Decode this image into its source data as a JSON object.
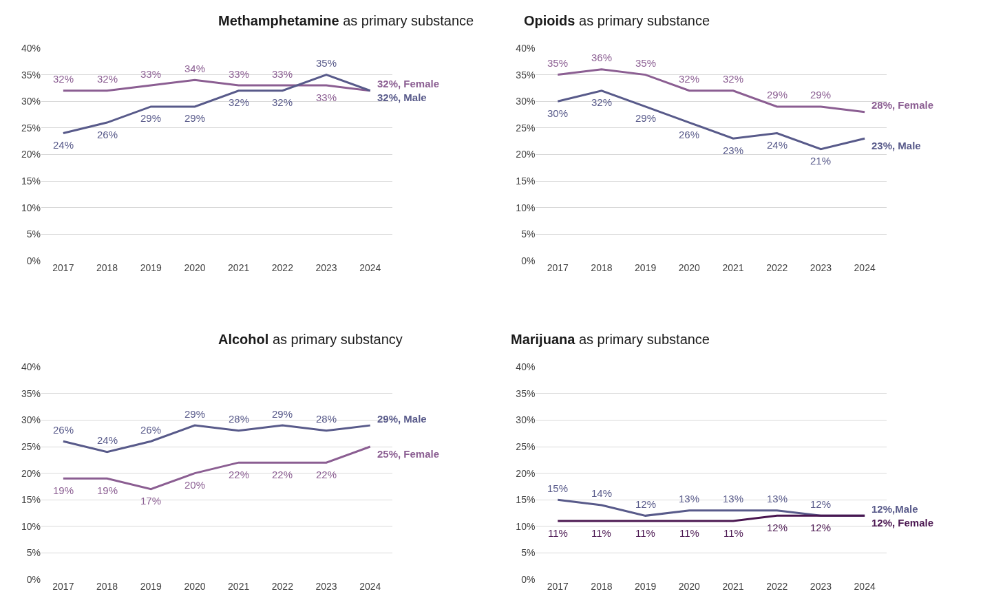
{
  "chart_data": [
    {
      "type": "line",
      "title": "Methamphetamine as primary substance",
      "categories": [
        "2017",
        "2018",
        "2019",
        "2020",
        "2021",
        "2022",
        "2023",
        "2024"
      ],
      "series": [
        {
          "color": "#8b5e92",
          "values": [
            32,
            32,
            33,
            34,
            33,
            33,
            33,
            32
          ],
          "value_labels": [
            "32%",
            "32%",
            "33%",
            "34%",
            "33%",
            "33%",
            "33%",
            "32%, Female"
          ]
        },
        {
          "color": "#585a8a",
          "values": [
            24,
            26,
            29,
            29,
            32,
            32,
            35,
            32
          ],
          "value_labels": [
            "24%",
            "26%",
            "29%",
            "29%",
            "32%",
            "32%",
            "35%",
            "32%, Male"
          ]
        }
      ],
      "ylim": [
        0,
        40
      ],
      "yticks": [
        {
          "value": 0,
          "label": "0%"
        },
        {
          "value": 5,
          "label": "5%"
        },
        {
          "value": 10,
          "label": "10%"
        },
        {
          "value": 15,
          "label": "15%"
        },
        {
          "value": 20,
          "label": "20%"
        },
        {
          "value": 25,
          "label": "25%"
        },
        {
          "value": 30,
          "label": "30%"
        },
        {
          "value": 35,
          "label": "35%"
        },
        {
          "value": 40,
          "label": "40%"
        }
      ],
      "grid": "y",
      "marker": "none"
    },
    {
      "type": "line",
      "title": "Opioids as primary substance",
      "categories": [
        "2017",
        "2018",
        "2019",
        "2020",
        "2021",
        "2022",
        "2023",
        "2024"
      ],
      "series": [
        {
          "color": "#8b5e92",
          "values": [
            35,
            36,
            35,
            32,
            32,
            29,
            29,
            28
          ],
          "value_labels": [
            "35%",
            "36%",
            "35%",
            "32%",
            "32%",
            "29%",
            "29%",
            "28%, Female"
          ]
        },
        {
          "color": "#585a8a",
          "values": [
            30,
            32,
            29,
            26,
            23,
            24,
            21,
            23
          ],
          "value_labels": [
            "30%",
            "32%",
            "29%",
            "26%",
            "23%",
            "24%",
            "21%",
            "23%, Male"
          ]
        }
      ],
      "ylim": [
        0,
        40
      ],
      "yticks": [
        {
          "value": 0,
          "label": "0%"
        },
        {
          "value": 5,
          "label": "5%"
        },
        {
          "value": 10,
          "label": "10%"
        },
        {
          "value": 15,
          "label": "15%"
        },
        {
          "value": 20,
          "label": "20%"
        },
        {
          "value": 25,
          "label": "25%"
        },
        {
          "value": 30,
          "label": "30%"
        },
        {
          "value": 35,
          "label": "35%"
        },
        {
          "value": 40,
          "label": "40%"
        }
      ],
      "grid": "y",
      "marker": "none"
    },
    {
      "type": "line",
      "title": "Alcohol as primary substancy",
      "categories": [
        "2017",
        "2018",
        "2019",
        "2020",
        "2021",
        "2022",
        "2023",
        "2024"
      ],
      "series": [
        {
          "color": "#585a8a",
          "values": [
            26,
            24,
            26,
            29,
            28,
            29,
            28,
            29
          ],
          "value_labels": [
            "26%",
            "24%",
            "26%",
            "29%",
            "28%",
            "29%",
            "28%",
            "29%, Male"
          ]
        },
        {
          "color": "#8b5e92",
          "values": [
            19,
            19,
            17,
            20,
            22,
            22,
            22,
            25
          ],
          "value_labels": [
            "19%",
            "19%",
            "17%",
            "20%",
            "22%",
            "22%",
            "22%",
            "25%, Female"
          ]
        }
      ],
      "ylim": [
        0,
        40
      ],
      "yticks": [
        {
          "value": 0,
          "label": "0%"
        },
        {
          "value": 5,
          "label": "5%"
        },
        {
          "value": 10,
          "label": "10%"
        },
        {
          "value": 15,
          "label": "15%"
        },
        {
          "value": 20,
          "label": "20%"
        },
        {
          "value": 25,
          "label": "25%"
        },
        {
          "value": 30,
          "label": "30%"
        },
        {
          "value": 35,
          "label": "35%"
        },
        {
          "value": 40,
          "label": "40%"
        }
      ],
      "grid": "y",
      "marker": "none"
    },
    {
      "type": "line",
      "title": "Marijuana as primary substance",
      "categories": [
        "2017",
        "2018",
        "2019",
        "2020",
        "2021",
        "2022",
        "2023",
        "2024"
      ],
      "series": [
        {
          "color": "#585a8a",
          "values": [
            15,
            14,
            12,
            13,
            13,
            13,
            12,
            12
          ],
          "value_labels": [
            "15%",
            "14%",
            "12%",
            "13%",
            "13%",
            "13%",
            "12%",
            "12%,Male"
          ]
        },
        {
          "color": "#4a1650",
          "values": [
            11,
            11,
            11,
            11,
            11,
            12,
            12,
            12
          ],
          "value_labels": [
            "11%",
            "11%",
            "11%",
            "11%",
            "11%",
            "12%",
            "12%",
            "12%, Female"
          ]
        }
      ],
      "ylim": [
        0,
        40
      ],
      "yticks": [
        {
          "value": 0,
          "label": "0%"
        },
        {
          "value": 5,
          "label": "5%"
        },
        {
          "value": 10,
          "label": "10%"
        },
        {
          "value": 15,
          "label": "15%"
        },
        {
          "value": 20,
          "label": "20%"
        },
        {
          "value": 25,
          "label": "25%"
        },
        {
          "value": 30,
          "label": "30%"
        },
        {
          "value": 35,
          "label": "35%"
        },
        {
          "value": 40,
          "label": "40%"
        }
      ],
      "grid": "y",
      "marker": "none"
    }
  ]
}
